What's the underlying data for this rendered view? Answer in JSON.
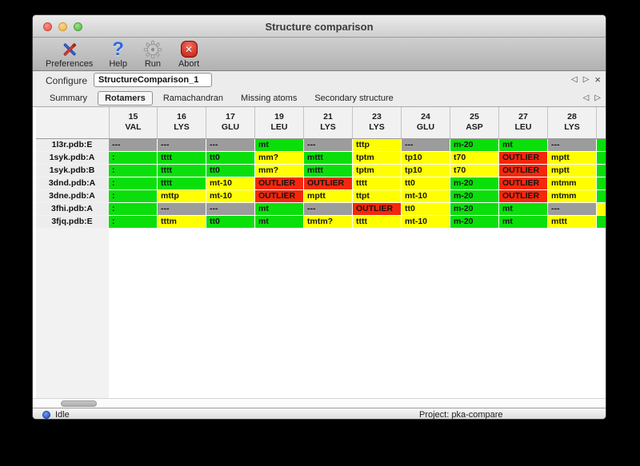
{
  "window": {
    "title": "Structure comparison"
  },
  "toolbar": {
    "buttons": [
      {
        "label": "Preferences",
        "icon": "tools-icon"
      },
      {
        "label": "Help",
        "icon": "question-icon"
      },
      {
        "label": "Run",
        "icon": "gear-icon"
      },
      {
        "label": "Abort",
        "icon": "stop-icon"
      }
    ]
  },
  "configure": {
    "label": "Configure",
    "value": "StructureComparison_1"
  },
  "nav_icons": {
    "prev": "◁",
    "next": "▷",
    "close": "×"
  },
  "tabs": {
    "items": [
      "Summary",
      "Rotamers",
      "Ramachandran",
      "Missing atoms",
      "Secondary structure"
    ],
    "selected": "Rotamers"
  },
  "colors": {
    "green": "#0bdf0b",
    "yellow": "#ffff00",
    "red": "#f5270b",
    "gray": "#9c9c9c"
  },
  "table": {
    "columns": [
      {
        "num": "15",
        "res": "VAL"
      },
      {
        "num": "16",
        "res": "LYS"
      },
      {
        "num": "17",
        "res": "GLU"
      },
      {
        "num": "19",
        "res": "LEU"
      },
      {
        "num": "21",
        "res": "LYS"
      },
      {
        "num": "23",
        "res": "LYS"
      },
      {
        "num": "24",
        "res": "GLU"
      },
      {
        "num": "25",
        "res": "ASP"
      },
      {
        "num": "27",
        "res": "LEU"
      },
      {
        "num": "28",
        "res": "LYS"
      }
    ],
    "rows": [
      {
        "label": "1l3r.pdb:E",
        "cells": [
          {
            "t": "---",
            "c": "gray"
          },
          {
            "t": "---",
            "c": "gray"
          },
          {
            "t": "---",
            "c": "gray"
          },
          {
            "t": "mt",
            "c": "green"
          },
          {
            "t": "---",
            "c": "gray"
          },
          {
            "t": "tttp",
            "c": "yellow"
          },
          {
            "t": "---",
            "c": "gray"
          },
          {
            "t": "m-20",
            "c": "green"
          },
          {
            "t": "mt",
            "c": "green"
          },
          {
            "t": "---",
            "c": "gray"
          }
        ]
      },
      {
        "label": "1syk.pdb:A",
        "cells": [
          {
            "t": ":",
            "c": "green"
          },
          {
            "t": "tttt",
            "c": "green"
          },
          {
            "t": "tt0",
            "c": "green"
          },
          {
            "t": "mm?",
            "c": "yellow"
          },
          {
            "t": "mttt",
            "c": "green"
          },
          {
            "t": "tptm",
            "c": "yellow"
          },
          {
            "t": "tp10",
            "c": "yellow"
          },
          {
            "t": "t70",
            "c": "yellow"
          },
          {
            "t": "OUTLIER",
            "c": "red"
          },
          {
            "t": "mptt",
            "c": "yellow"
          }
        ]
      },
      {
        "label": "1syk.pdb:B",
        "cells": [
          {
            "t": ":",
            "c": "green"
          },
          {
            "t": "tttt",
            "c": "green"
          },
          {
            "t": "tt0",
            "c": "green"
          },
          {
            "t": "mm?",
            "c": "yellow"
          },
          {
            "t": "mttt",
            "c": "green"
          },
          {
            "t": "tptm",
            "c": "yellow"
          },
          {
            "t": "tp10",
            "c": "yellow"
          },
          {
            "t": "t70",
            "c": "yellow"
          },
          {
            "t": "OUTLIER",
            "c": "red"
          },
          {
            "t": "mptt",
            "c": "yellow"
          }
        ]
      },
      {
        "label": "3dnd.pdb:A",
        "cells": [
          {
            "t": ":",
            "c": "green"
          },
          {
            "t": "tttt",
            "c": "green"
          },
          {
            "t": "mt-10",
            "c": "yellow"
          },
          {
            "t": "OUTLIER",
            "c": "red"
          },
          {
            "t": "OUTLIER",
            "c": "red"
          },
          {
            "t": "tttt",
            "c": "yellow"
          },
          {
            "t": "tt0",
            "c": "yellow"
          },
          {
            "t": "m-20",
            "c": "green"
          },
          {
            "t": "OUTLIER",
            "c": "red"
          },
          {
            "t": "mtmm",
            "c": "yellow"
          }
        ]
      },
      {
        "label": "3dne.pdb:A",
        "cells": [
          {
            "t": ":",
            "c": "green"
          },
          {
            "t": "mttp",
            "c": "yellow"
          },
          {
            "t": "mt-10",
            "c": "yellow"
          },
          {
            "t": "OUTLIER",
            "c": "red"
          },
          {
            "t": "mptt",
            "c": "yellow"
          },
          {
            "t": "ttpt",
            "c": "yellow"
          },
          {
            "t": "mt-10",
            "c": "yellow"
          },
          {
            "t": "m-20",
            "c": "green"
          },
          {
            "t": "OUTLIER",
            "c": "red"
          },
          {
            "t": "mtmm",
            "c": "yellow"
          }
        ]
      },
      {
        "label": "3fhi.pdb:A",
        "cells": [
          {
            "t": ":",
            "c": "green"
          },
          {
            "t": "---",
            "c": "gray"
          },
          {
            "t": "---",
            "c": "gray"
          },
          {
            "t": "mt",
            "c": "green"
          },
          {
            "t": "---",
            "c": "gray"
          },
          {
            "t": "OUTLIER",
            "c": "red"
          },
          {
            "t": "tt0",
            "c": "yellow"
          },
          {
            "t": "m-20",
            "c": "green"
          },
          {
            "t": "mt",
            "c": "green"
          },
          {
            "t": "---",
            "c": "gray"
          }
        ]
      },
      {
        "label": "3fjq.pdb:E",
        "cells": [
          {
            "t": ":",
            "c": "green"
          },
          {
            "t": "tttm",
            "c": "yellow"
          },
          {
            "t": "tt0",
            "c": "green"
          },
          {
            "t": "mt",
            "c": "green"
          },
          {
            "t": "tmtm?",
            "c": "yellow"
          },
          {
            "t": "tttt",
            "c": "yellow"
          },
          {
            "t": "mt-10",
            "c": "yellow"
          },
          {
            "t": "m-20",
            "c": "green"
          },
          {
            "t": "mt",
            "c": "green"
          },
          {
            "t": "mttt",
            "c": "yellow"
          }
        ]
      }
    ],
    "partial_column": {
      "cells": [
        "green",
        "green",
        "green",
        "green",
        "green",
        "yellow",
        "green"
      ]
    }
  },
  "status": {
    "state": "Idle",
    "project": "Project: pka-compare"
  }
}
